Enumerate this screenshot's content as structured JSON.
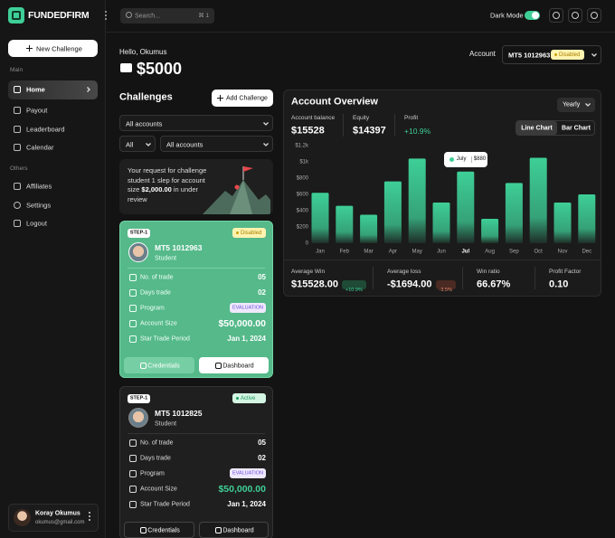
{
  "sidebar": {
    "brand": "FUNDEDFIRM",
    "new_challenge": "New Challenge",
    "main_label": "Main",
    "main_items": [
      "Home",
      "Payout",
      "Leaderboard",
      "Calendar"
    ],
    "others_label": "Others",
    "other_items": [
      "Affiliates",
      "Settings",
      "Logout"
    ],
    "user": {
      "name": "Koray Okumus",
      "email": "okumus@gmail.com"
    }
  },
  "topbar": {
    "search": "Search...",
    "shortcut": "⌘ 1",
    "dark_mode": "Dark Mode"
  },
  "greeting": "Hello, Okumus",
  "balance": "$5000",
  "account": {
    "label": "Account",
    "id": "MT5 1012963",
    "status": "Disabled"
  },
  "challenges": {
    "title": "Challenges",
    "add": "Add Challenge",
    "filter_accounts": "All accounts",
    "filter_all": "All",
    "filter_accounts_2": "All accounts",
    "notice": {
      "text_before": "Your request for challenge student 1 slep for account size ",
      "amount": "$2,000.00",
      "text_after": " in under review"
    },
    "cards": [
      {
        "step": "STEP-1",
        "status": "Disabled",
        "id": "MT5 1012963",
        "role": "Student",
        "rows": [
          {
            "label": "No. of trade",
            "value": "05"
          },
          {
            "label": "Days trade",
            "value": "02"
          },
          {
            "label": "Program",
            "value": "EVALUATION"
          },
          {
            "label": "Account Size",
            "value": "$50,000.00"
          },
          {
            "label": "Star Trade Period",
            "value": "Jan 1, 2024"
          }
        ],
        "buttons": [
          "Credentials",
          "Dashboard"
        ]
      },
      {
        "step": "STEP-1",
        "status": "Active",
        "id": "MT5 1012825",
        "role": "Student",
        "rows": [
          {
            "label": "No. of trade",
            "value": "05"
          },
          {
            "label": "Days trade",
            "value": "02"
          },
          {
            "label": "Program",
            "value": "EVALUATION"
          },
          {
            "label": "Account Size",
            "value": "$50,000.00"
          },
          {
            "label": "Star Trade Period",
            "value": "Jan 1, 2024"
          }
        ],
        "buttons": [
          "Credentials",
          "Dashboard"
        ]
      }
    ]
  },
  "overview": {
    "title": "Account Overview",
    "period": "Yearly",
    "stats": [
      {
        "label": "Account balance",
        "value": "$15528"
      },
      {
        "label": "Equity",
        "value": "$14397"
      },
      {
        "label": "Profit",
        "value": "+10.9%"
      }
    ],
    "toggle": [
      "Line Chart",
      "Bar Chart"
    ],
    "metrics": [
      {
        "label": "Average Win",
        "value": "$15528.00",
        "badge": "+10.9%"
      },
      {
        "label": "Average loss",
        "value": "-$1694.00",
        "badge": "-3.5%"
      },
      {
        "label": "Win ratio",
        "value": "66.67%"
      },
      {
        "label": "Profit Factor",
        "value": "0.10"
      }
    ]
  },
  "chart_data": {
    "type": "bar",
    "categories": [
      "Jan",
      "Feb",
      "Mar",
      "Apr",
      "May",
      "Jun",
      "Jul",
      "Aug",
      "Sep",
      "Oct",
      "Nov",
      "Dec"
    ],
    "values": [
      620,
      460,
      350,
      760,
      1040,
      500,
      880,
      300,
      740,
      1050,
      500,
      600
    ],
    "value_labels": [
      null,
      null,
      null,
      null,
      null,
      null,
      "$880",
      null,
      null,
      null,
      null,
      null
    ],
    "tooltip_title": "July",
    "color": "#3ecf97",
    "ylim": [
      0,
      1200
    ],
    "yticks": [
      0,
      {
        "value": 200,
        "label": "$200"
      },
      {
        "value": 400,
        "label": "$400"
      },
      {
        "value": 600,
        "label": "$600"
      },
      {
        "value": 800,
        "label": "$800"
      },
      {
        "value": 1000,
        "label": "$1k"
      },
      {
        "value": 1200,
        "label": "$1.2k"
      }
    ],
    "grid": false
  }
}
